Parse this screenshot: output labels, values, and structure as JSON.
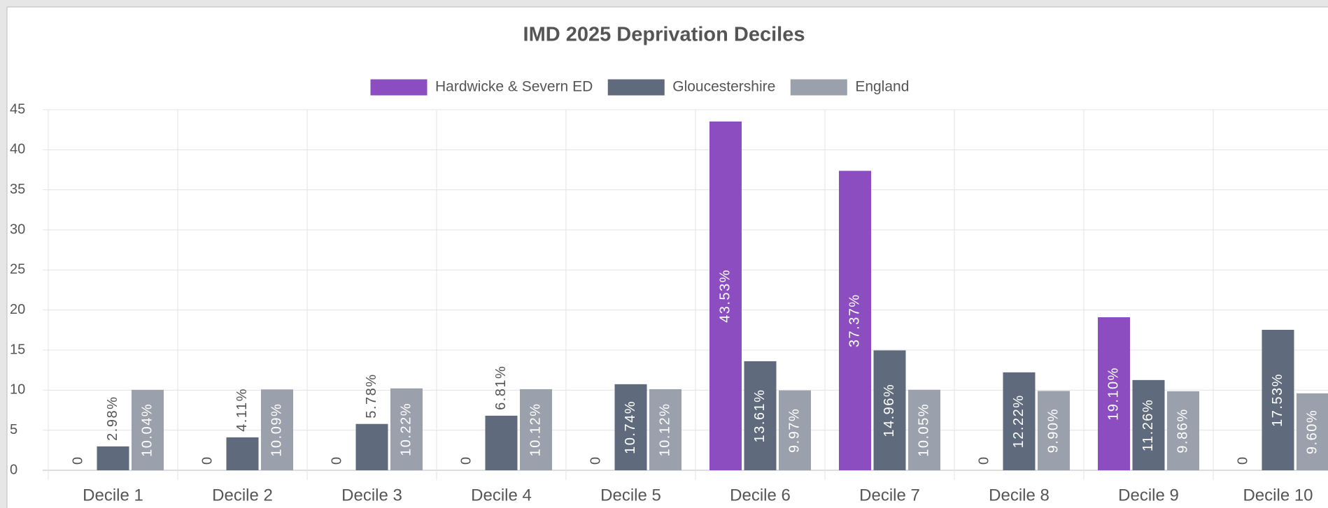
{
  "chart_data": {
    "type": "bar",
    "title": "IMD 2025 Deprivation Deciles",
    "categories": [
      "Decile 1",
      "Decile 2",
      "Decile 3",
      "Decile 4",
      "Decile 5",
      "Decile 6",
      "Decile 7",
      "Decile 8",
      "Decile 9",
      "Decile 10"
    ],
    "series": [
      {
        "name": "Hardwicke & Severn ED",
        "color": "#8b4dbf",
        "values": [
          0,
          0,
          0,
          0,
          0,
          43.53,
          37.37,
          0,
          19.1,
          0
        ],
        "value_labels": [
          "0",
          "0",
          "0",
          "0",
          "0",
          "43.53%",
          "37.37%",
          "0",
          "19.10%",
          "0"
        ]
      },
      {
        "name": "Gloucestershire",
        "color": "#5f6b7d",
        "values": [
          2.98,
          4.11,
          5.78,
          6.81,
          10.74,
          13.61,
          14.96,
          12.22,
          11.26,
          17.53
        ],
        "value_labels": [
          "2.98%",
          "4.11%",
          "5.78%",
          "6.81%",
          "10.74%",
          "13.61%",
          "14.96%",
          "12.22%",
          "11.26%",
          "17.53%"
        ]
      },
      {
        "name": "England",
        "color": "#9ba0ad",
        "values": [
          10.04,
          10.09,
          10.22,
          10.12,
          10.12,
          9.97,
          10.05,
          9.9,
          9.86,
          9.6
        ],
        "value_labels": [
          "10.04%",
          "10.09%",
          "10.22%",
          "10.12%",
          "10.12%",
          "9.97%",
          "10.05%",
          "9.90%",
          "9.86%",
          "9.60%"
        ]
      }
    ],
    "ylim": [
      0,
      45
    ],
    "yticks": [
      0,
      5,
      10,
      15,
      20,
      25,
      30,
      35,
      40,
      45
    ],
    "grid": true,
    "legend": "top"
  }
}
